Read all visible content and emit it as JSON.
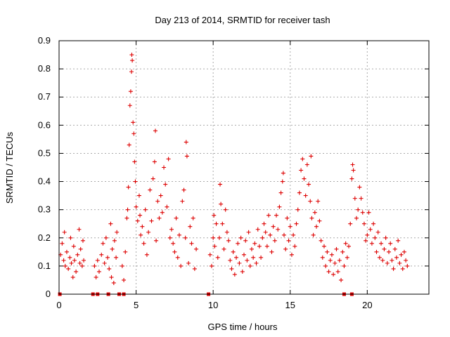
{
  "chart_data": {
    "type": "scatter",
    "title": "Day 213 of 2014, SRMTID for receiver tash",
    "xlabel": "GPS time / hours",
    "ylabel": "SRMTID / TECUs",
    "xlim": [
      0,
      24
    ],
    "ylim": [
      0,
      0.9
    ],
    "xticks": [
      0,
      5,
      10,
      15,
      20
    ],
    "xtick_labels": [
      "0",
      "5",
      "10",
      "15",
      "20"
    ],
    "yticks": [
      0,
      0.1,
      0.2,
      0.3,
      0.4,
      0.5,
      0.6,
      0.7,
      0.8,
      0.9
    ],
    "ytick_labels": [
      "0",
      "0.1",
      "0.2",
      "0.3",
      "0.4",
      "0.5",
      "0.6",
      "0.7",
      "0.8",
      "0.9"
    ],
    "grid": true,
    "marker": "plus",
    "color": "#dd0000",
    "zero_markers_x": [
      0.05,
      2.2,
      2.5,
      3.2,
      3.9,
      4.2,
      9.7,
      18.5,
      19.0
    ],
    "series": [
      {
        "name": "SRMTID",
        "points": [
          [
            0.1,
            0.14
          ],
          [
            0.2,
            0.18
          ],
          [
            0.3,
            0.12
          ],
          [
            0.35,
            0.22
          ],
          [
            0.4,
            0.1
          ],
          [
            0.5,
            0.15
          ],
          [
            0.6,
            0.09
          ],
          [
            0.7,
            0.13
          ],
          [
            0.75,
            0.2
          ],
          [
            0.8,
            0.11
          ],
          [
            0.9,
            0.06
          ],
          [
            0.95,
            0.17
          ],
          [
            1.0,
            0.12
          ],
          [
            1.1,
            0.08
          ],
          [
            1.2,
            0.14
          ],
          [
            1.3,
            0.23
          ],
          [
            1.35,
            0.11
          ],
          [
            1.4,
            0.16
          ],
          [
            1.5,
            0.1
          ],
          [
            1.55,
            0.19
          ],
          [
            1.6,
            0.12
          ],
          [
            2.3,
            0.1
          ],
          [
            2.4,
            0.06
          ],
          [
            2.5,
            0.12
          ],
          [
            2.6,
            0.08
          ],
          [
            2.75,
            0.14
          ],
          [
            2.85,
            0.18
          ],
          [
            2.95,
            0.11
          ],
          [
            3.05,
            0.2
          ],
          [
            3.15,
            0.13
          ],
          [
            3.25,
            0.09
          ],
          [
            3.35,
            0.25
          ],
          [
            3.4,
            0.06
          ],
          [
            3.45,
            0.16
          ],
          [
            3.55,
            0.04
          ],
          [
            3.6,
            0.19
          ],
          [
            3.7,
            0.13
          ],
          [
            3.75,
            0.22
          ],
          [
            4.1,
            0.1
          ],
          [
            4.2,
            0.05
          ],
          [
            4.3,
            0.15
          ],
          [
            4.4,
            0.27
          ],
          [
            4.45,
            0.3
          ],
          [
            4.5,
            0.38
          ],
          [
            4.55,
            0.53
          ],
          [
            4.6,
            0.67
          ],
          [
            4.65,
            0.72
          ],
          [
            4.7,
            0.79
          ],
          [
            4.72,
            0.85
          ],
          [
            4.75,
            0.83
          ],
          [
            4.8,
            0.61
          ],
          [
            4.85,
            0.57
          ],
          [
            4.9,
            0.47
          ],
          [
            4.95,
            0.4
          ],
          [
            5.0,
            0.31
          ],
          [
            5.1,
            0.26
          ],
          [
            5.2,
            0.35
          ],
          [
            5.25,
            0.28
          ],
          [
            5.3,
            0.21
          ],
          [
            5.4,
            0.24
          ],
          [
            5.5,
            0.18
          ],
          [
            5.6,
            0.3
          ],
          [
            5.7,
            0.14
          ],
          [
            5.8,
            0.22
          ],
          [
            5.9,
            0.37
          ],
          [
            6.0,
            0.26
          ],
          [
            6.1,
            0.41
          ],
          [
            6.2,
            0.47
          ],
          [
            6.25,
            0.58
          ],
          [
            6.3,
            0.19
          ],
          [
            6.4,
            0.33
          ],
          [
            6.5,
            0.27
          ],
          [
            6.6,
            0.35
          ],
          [
            6.7,
            0.29
          ],
          [
            6.8,
            0.45
          ],
          [
            6.9,
            0.39
          ],
          [
            7.0,
            0.31
          ],
          [
            7.1,
            0.48
          ],
          [
            7.2,
            0.2
          ],
          [
            7.3,
            0.23
          ],
          [
            7.4,
            0.18
          ],
          [
            7.5,
            0.15
          ],
          [
            7.6,
            0.27
          ],
          [
            7.7,
            0.13
          ],
          [
            7.8,
            0.21
          ],
          [
            7.9,
            0.1
          ],
          [
            8.0,
            0.33
          ],
          [
            8.1,
            0.37
          ],
          [
            8.2,
            0.2
          ],
          [
            8.25,
            0.54
          ],
          [
            8.3,
            0.49
          ],
          [
            8.4,
            0.11
          ],
          [
            8.5,
            0.24
          ],
          [
            8.6,
            0.18
          ],
          [
            8.7,
            0.27
          ],
          [
            8.8,
            0.09
          ],
          [
            8.9,
            0.16
          ],
          [
            9.8,
            0.14
          ],
          [
            9.9,
            0.1
          ],
          [
            10.0,
            0.2
          ],
          [
            10.05,
            0.28
          ],
          [
            10.1,
            0.17
          ],
          [
            10.2,
            0.25
          ],
          [
            10.3,
            0.13
          ],
          [
            10.4,
            0.2
          ],
          [
            10.45,
            0.39
          ],
          [
            10.5,
            0.32
          ],
          [
            10.6,
            0.25
          ],
          [
            10.7,
            0.16
          ],
          [
            10.8,
            0.3
          ],
          [
            10.9,
            0.22
          ],
          [
            11.0,
            0.19
          ],
          [
            11.1,
            0.12
          ],
          [
            11.2,
            0.09
          ],
          [
            11.3,
            0.15
          ],
          [
            11.4,
            0.07
          ],
          [
            11.5,
            0.13
          ],
          [
            11.6,
            0.18
          ],
          [
            11.7,
            0.11
          ],
          [
            11.8,
            0.2
          ],
          [
            11.9,
            0.08
          ],
          [
            12.0,
            0.14
          ],
          [
            12.1,
            0.19
          ],
          [
            12.2,
            0.12
          ],
          [
            12.3,
            0.22
          ],
          [
            12.4,
            0.1
          ],
          [
            12.5,
            0.16
          ],
          [
            12.6,
            0.13
          ],
          [
            12.7,
            0.18
          ],
          [
            12.8,
            0.11
          ],
          [
            12.9,
            0.23
          ],
          [
            13.0,
            0.17
          ],
          [
            13.1,
            0.13
          ],
          [
            13.2,
            0.2
          ],
          [
            13.3,
            0.25
          ],
          [
            13.4,
            0.22
          ],
          [
            13.5,
            0.17
          ],
          [
            13.6,
            0.28
          ],
          [
            13.7,
            0.21
          ],
          [
            13.8,
            0.15
          ],
          [
            13.9,
            0.24
          ],
          [
            14.0,
            0.19
          ],
          [
            14.1,
            0.28
          ],
          [
            14.2,
            0.23
          ],
          [
            14.3,
            0.31
          ],
          [
            14.4,
            0.36
          ],
          [
            14.5,
            0.4
          ],
          [
            14.55,
            0.43
          ],
          [
            14.6,
            0.21
          ],
          [
            14.7,
            0.16
          ],
          [
            14.8,
            0.27
          ],
          [
            14.9,
            0.19
          ],
          [
            15.0,
            0.24
          ],
          [
            15.1,
            0.14
          ],
          [
            15.2,
            0.21
          ],
          [
            15.3,
            0.17
          ],
          [
            15.4,
            0.25
          ],
          [
            15.5,
            0.3
          ],
          [
            15.6,
            0.36
          ],
          [
            15.7,
            0.44
          ],
          [
            15.8,
            0.48
          ],
          [
            15.9,
            0.41
          ],
          [
            16.0,
            0.35
          ],
          [
            16.1,
            0.46
          ],
          [
            16.2,
            0.39
          ],
          [
            16.3,
            0.33
          ],
          [
            16.35,
            0.49
          ],
          [
            16.4,
            0.27
          ],
          [
            16.5,
            0.21
          ],
          [
            16.6,
            0.29
          ],
          [
            16.7,
            0.24
          ],
          [
            16.8,
            0.33
          ],
          [
            16.9,
            0.26
          ],
          [
            17.0,
            0.19
          ],
          [
            17.1,
            0.13
          ],
          [
            17.2,
            0.17
          ],
          [
            17.3,
            0.1
          ],
          [
            17.4,
            0.15
          ],
          [
            17.5,
            0.08
          ],
          [
            17.6,
            0.12
          ],
          [
            17.7,
            0.14
          ],
          [
            17.8,
            0.07
          ],
          [
            17.9,
            0.11
          ],
          [
            18.0,
            0.16
          ],
          [
            18.1,
            0.08
          ],
          [
            18.2,
            0.12
          ],
          [
            18.3,
            0.05
          ],
          [
            18.4,
            0.15
          ],
          [
            18.5,
            0.1
          ],
          [
            18.6,
            0.18
          ],
          [
            18.7,
            0.13
          ],
          [
            18.8,
            0.17
          ],
          [
            18.9,
            0.25
          ],
          [
            19.0,
            0.41
          ],
          [
            19.05,
            0.46
          ],
          [
            19.1,
            0.44
          ],
          [
            19.2,
            0.34
          ],
          [
            19.3,
            0.27
          ],
          [
            19.4,
            0.3
          ],
          [
            19.5,
            0.38
          ],
          [
            19.6,
            0.34
          ],
          [
            19.7,
            0.29
          ],
          [
            19.8,
            0.25
          ],
          [
            19.9,
            0.19
          ],
          [
            20.0,
            0.21
          ],
          [
            20.1,
            0.29
          ],
          [
            20.2,
            0.23
          ],
          [
            20.3,
            0.18
          ],
          [
            20.4,
            0.25
          ],
          [
            20.5,
            0.2
          ],
          [
            20.6,
            0.15
          ],
          [
            20.7,
            0.22
          ],
          [
            20.8,
            0.13
          ],
          [
            20.9,
            0.18
          ],
          [
            21.0,
            0.12
          ],
          [
            21.1,
            0.16
          ],
          [
            21.2,
            0.2
          ],
          [
            21.3,
            0.11
          ],
          [
            21.4,
            0.15
          ],
          [
            21.5,
            0.18
          ],
          [
            21.6,
            0.12
          ],
          [
            21.7,
            0.09
          ],
          [
            21.8,
            0.16
          ],
          [
            21.9,
            0.13
          ],
          [
            22.0,
            0.19
          ],
          [
            22.1,
            0.11
          ],
          [
            22.2,
            0.14
          ],
          [
            22.3,
            0.09
          ],
          [
            22.4,
            0.15
          ],
          [
            22.5,
            0.12
          ],
          [
            22.6,
            0.1
          ]
        ]
      }
    ]
  }
}
